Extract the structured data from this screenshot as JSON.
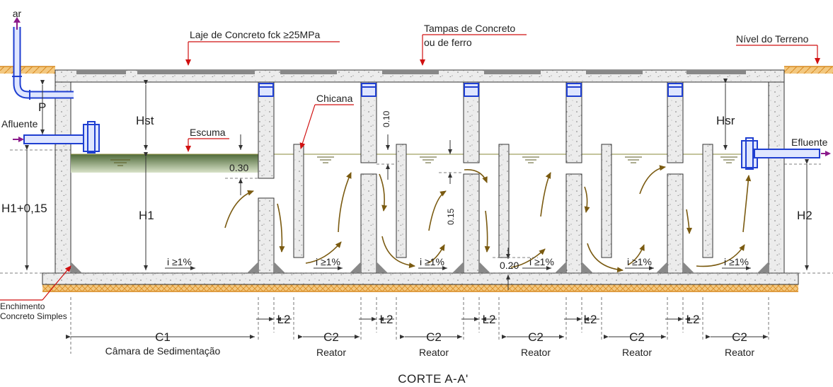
{
  "title": "CORTE A-A'",
  "labels": {
    "ar": "ar",
    "laje": "Laje de Concreto fck ≥25MPa",
    "tampas_line1": "Tampas de Concreto",
    "tampas_line2": "ou de ferro",
    "nivel": "Nível do Terreno",
    "p": "P",
    "afluente": "Afluente",
    "hst": "Hst",
    "escuma": "Escuma",
    "chicana": "Chicana",
    "d030": "0.30",
    "d010": "0.10",
    "d015": "0.15",
    "d020": "0.20",
    "h1015": "H1+0,15",
    "h1": "H1",
    "h2": "H2",
    "hsr": "Hsr",
    "efluente": "Efluente",
    "slope": "i ≥1%",
    "enchimento_line1": "Enchimento",
    "enchimento_line2": "Concreto Simples",
    "l2": "L2",
    "c1": "C1",
    "c1_caption": "Câmara de Sedimentação",
    "c2": "C2",
    "reator": "Reator"
  },
  "colors": {
    "concrete": "#e6e6e6",
    "soil": "#e8a23a",
    "pipe": "#1f3fd1",
    "pipe_fill": "#dfe6ff",
    "arrow_flow": "#7a5a10",
    "arrow_io": "#8b1a8b",
    "leader": "#d01010",
    "water": "#8a8a3a",
    "scum": "#6f8a55"
  }
}
